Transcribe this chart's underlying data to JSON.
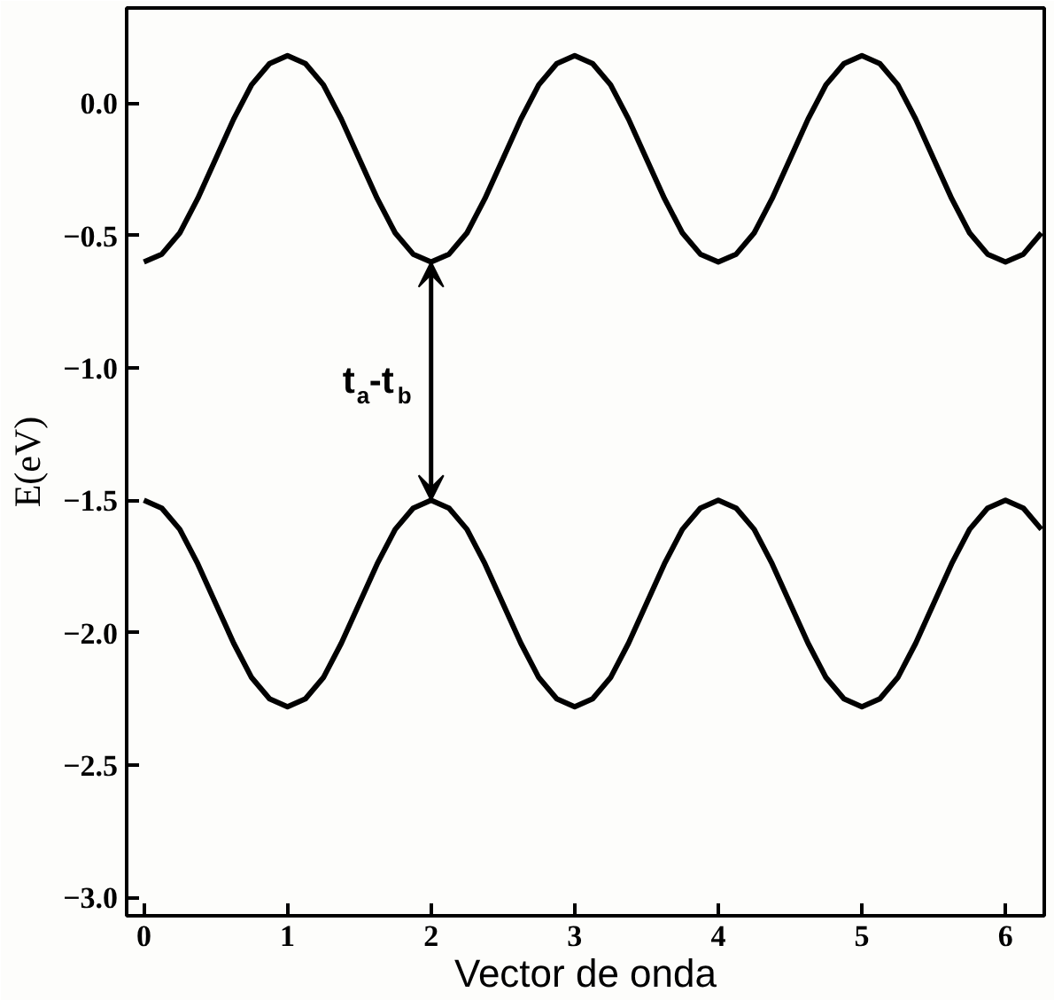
{
  "chart_data": {
    "type": "line",
    "xlabel": "Vector de onda",
    "ylabel": "E(eV)",
    "x": [
      0,
      0.125,
      0.25,
      0.375,
      0.5,
      0.625,
      0.75,
      0.875,
      1,
      1.125,
      1.25,
      1.375,
      1.5,
      1.625,
      1.75,
      1.875,
      2,
      2.125,
      2.25,
      2.375,
      2.5,
      2.625,
      2.75,
      2.875,
      3,
      3.125,
      3.25,
      3.375,
      3.5,
      3.625,
      3.75,
      3.875,
      4,
      4.125,
      4.25,
      4.375,
      4.5,
      4.625,
      4.75,
      4.875,
      5,
      5.125,
      5.25,
      5.375,
      5.5,
      5.625,
      5.75,
      5.875,
      6,
      6.125,
      6.25
    ],
    "series": [
      {
        "color": "#000000",
        "values": [
          -0.6,
          -0.57,
          -0.49,
          -0.36,
          -0.21,
          -0.06,
          0.07,
          0.15,
          0.18,
          0.15,
          0.07,
          -0.06,
          -0.21,
          -0.36,
          -0.49,
          -0.57,
          -0.6,
          -0.57,
          -0.49,
          -0.36,
          -0.21,
          -0.06,
          0.07,
          0.15,
          0.18,
          0.15,
          0.07,
          -0.06,
          -0.21,
          -0.36,
          -0.49,
          -0.57,
          -0.6,
          -0.57,
          -0.49,
          -0.36,
          -0.21,
          -0.06,
          0.07,
          0.15,
          0.18,
          0.15,
          0.07,
          -0.06,
          -0.21,
          -0.36,
          -0.49,
          -0.57,
          -0.6,
          -0.57,
          -0.49
        ]
      },
      {
        "color": "#000000",
        "values": [
          -1.5,
          -1.53,
          -1.61,
          -1.74,
          -1.89,
          -2.04,
          -2.17,
          -2.25,
          -2.28,
          -2.25,
          -2.17,
          -2.04,
          -1.89,
          -1.74,
          -1.61,
          -1.53,
          -1.5,
          -1.53,
          -1.61,
          -1.74,
          -1.89,
          -2.04,
          -2.17,
          -2.25,
          -2.28,
          -2.25,
          -2.17,
          -2.04,
          -1.89,
          -1.74,
          -1.61,
          -1.53,
          -1.5,
          -1.53,
          -1.61,
          -1.74,
          -1.89,
          -2.04,
          -2.17,
          -2.25,
          -2.28,
          -2.25,
          -2.17,
          -2.04,
          -1.89,
          -1.74,
          -1.61,
          -1.53,
          -1.5,
          -1.53,
          -1.61
        ]
      }
    ],
    "xlim": [
      -0.12,
      6.27
    ],
    "ylim": [
      -3.07,
      0.36
    ],
    "xticks": [
      0,
      1,
      2,
      3,
      4,
      5,
      6
    ],
    "yticks": [
      {
        "value": 0,
        "label": "0.0"
      },
      {
        "value": -0.5,
        "label": "−0.5"
      },
      {
        "value": -1,
        "label": "−1.0"
      },
      {
        "value": -1.5,
        "label": "−1.5"
      },
      {
        "value": -2,
        "label": "−2.0"
      },
      {
        "value": -2.5,
        "label": "−2.5"
      },
      {
        "value": -3,
        "label": "−3.0"
      }
    ],
    "annotations": [
      "t$_{a}$-t$_{b}$"
    ],
    "grid": false,
    "line_style": "solid",
    "marker": "none"
  }
}
